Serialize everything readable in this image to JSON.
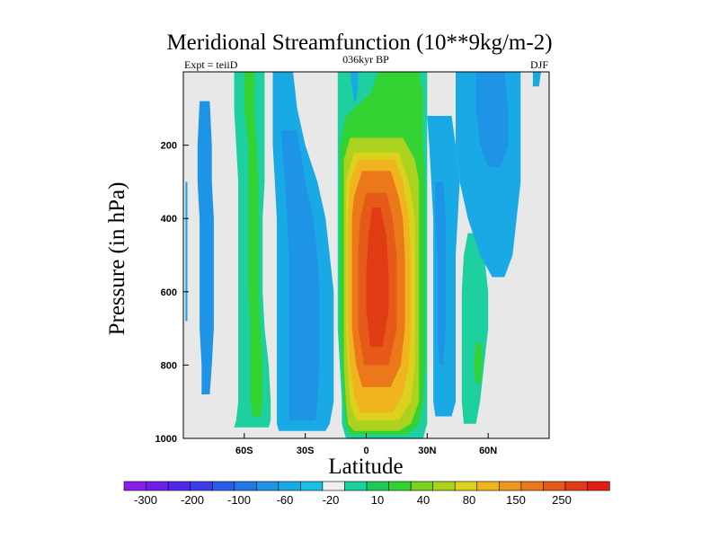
{
  "chart_data": {
    "type": "contour",
    "title": "Meridional Streamfunction (10**9kg/m-2)",
    "subtitle_left": "Expt = teiiD",
    "subtitle_center": "036kyr BP",
    "subtitle_right": "DJF",
    "xlabel": "Latitude",
    "ylabel": "Pressure (in hPa)",
    "xlim": [
      -90,
      90
    ],
    "ylim": [
      1000,
      0
    ],
    "x_ticks": [
      {
        "value": -60,
        "label": "60S"
      },
      {
        "value": -30,
        "label": "30S"
      },
      {
        "value": 0,
        "label": "0"
      },
      {
        "value": 30,
        "label": "30N"
      },
      {
        "value": 60,
        "label": "60N"
      }
    ],
    "y_ticks": [
      {
        "value": 200,
        "label": "200"
      },
      {
        "value": 400,
        "label": "400"
      },
      {
        "value": 600,
        "label": "600"
      },
      {
        "value": 800,
        "label": "800"
      },
      {
        "value": 1000,
        "label": "1000"
      }
    ],
    "colorbar": {
      "colors": [
        "#8a1ee6",
        "#6e1ee6",
        "#5028e6",
        "#3c3ce6",
        "#2a5ce8",
        "#1e78e6",
        "#1e94e6",
        "#19aae6",
        "#19bfe6",
        "#eeeeee",
        "#1ecfa0",
        "#1ec85a",
        "#32d232",
        "#78d21e",
        "#aad21e",
        "#dcd21e",
        "#f0b41e",
        "#f0961e",
        "#eb7819",
        "#e65a19",
        "#e03c14",
        "#e01e14"
      ],
      "tick_labels": [
        "-300",
        "-200",
        "-100",
        "-60",
        "-20",
        "10",
        "40",
        "80",
        "150",
        "250"
      ]
    },
    "contour_fill": [
      {
        "name": "sh-polar-minus20",
        "color": "#19aae6",
        "x": [
          -88,
          -72,
          -72,
          -88
        ],
        "y": [
          [
            90,
            150,
            220,
            300,
            400,
            500,
            600,
            700,
            800,
            900,
            940,
            960
          ],
          [
            90,
            150,
            220,
            300,
            400,
            500,
            600,
            700,
            800,
            900,
            940,
            960
          ]
        ],
        "shape": "band",
        "x0": [
          -88,
          -86,
          -86,
          -86,
          -86,
          -86,
          -86,
          -86,
          -86,
          -85,
          -84,
          -83
        ],
        "x1": [
          -72,
          -72,
          -73,
          -72,
          -71,
          -70,
          -70,
          -70,
          -70,
          -71,
          -72,
          -74
        ]
      },
      {
        "name": "sh-polar-minus60",
        "color": "#1e94e6",
        "shape": "band",
        "y": [
          80,
          200,
          300,
          400,
          500,
          600,
          700,
          800,
          880
        ],
        "x0": [
          -82,
          -83,
          -83,
          -82,
          -82,
          -82,
          -82,
          -81,
          -81
        ],
        "x1": [
          -77,
          -76,
          -76,
          -75,
          -75,
          -75,
          -75,
          -76,
          -77
        ]
      },
      {
        "name": "sh-mid-plus20",
        "color": "#1ecfa0",
        "shape": "band",
        "y": [
          0,
          100,
          200,
          300,
          400,
          500,
          600,
          700,
          800,
          900,
          950,
          970
        ],
        "x0": [
          -65,
          -65,
          -64,
          -63,
          -63,
          -63,
          -63,
          -63,
          -63,
          -63,
          -64,
          -65
        ],
        "x1": [
          -50,
          -50,
          -50,
          -50,
          -51,
          -51,
          -51,
          -50,
          -48,
          -47,
          -47,
          -48
        ]
      },
      {
        "name": "sh-mid-plus40",
        "color": "#32d232",
        "shape": "band",
        "y": [
          0,
          100,
          200,
          300,
          400,
          500,
          600,
          700,
          800,
          900,
          940
        ],
        "x0": [
          -60,
          -60,
          -58,
          -58,
          -58,
          -58,
          -58,
          -57,
          -57,
          -57,
          -56
        ],
        "x1": [
          -55,
          -55,
          -54,
          -53,
          -53,
          -53,
          -53,
          -52,
          -51,
          -51,
          -52
        ]
      },
      {
        "name": "sh-subtrop-minus20",
        "color": "#19aae6",
        "shape": "band",
        "y": [
          0,
          100,
          200,
          300,
          400,
          500,
          600,
          700,
          800,
          900,
          960,
          980
        ],
        "x0": [
          -46,
          -46,
          -46,
          -45,
          -44,
          -44,
          -44,
          -44,
          -44,
          -44,
          -44,
          -43
        ],
        "x1": [
          -36,
          -34,
          -30,
          -24,
          -20,
          -18,
          -16,
          -16,
          -16,
          -16,
          -18,
          -20
        ]
      },
      {
        "name": "sh-subtrop-minus60",
        "color": "#1e94e6",
        "shape": "band",
        "y": [
          160,
          300,
          400,
          500,
          600,
          700,
          800,
          900,
          950
        ],
        "x0": [
          -42,
          -40,
          -39,
          -38,
          -38,
          -38,
          -38,
          -38,
          -38
        ],
        "x1": [
          -34,
          -30,
          -26,
          -24,
          -23,
          -23,
          -23,
          -24,
          -25
        ]
      },
      {
        "name": "trop-plus10",
        "color": "#1ecfa0",
        "shape": "band",
        "y": [
          0,
          60,
          120,
          200,
          300,
          400,
          500,
          600,
          700,
          800,
          900,
          960,
          1000
        ],
        "x0": [
          -14,
          -14,
          -14,
          -14,
          -14,
          -14,
          -14,
          -14,
          -14,
          -13,
          -12,
          -12,
          -10
        ],
        "x1": [
          30,
          30,
          30,
          30,
          30,
          30,
          30,
          30,
          30,
          30,
          30,
          30,
          28
        ]
      },
      {
        "name": "trop-plus40",
        "color": "#32d232",
        "shape": "band",
        "y": [
          0,
          60,
          120,
          200,
          300,
          400,
          500,
          600,
          700,
          800,
          900,
          960,
          990
        ],
        "x0": [
          6,
          2,
          -10,
          -13,
          -13,
          -13,
          -13,
          -13,
          -13,
          -12,
          -11,
          -10,
          -8
        ],
        "x1": [
          26,
          28,
          28,
          28,
          29,
          29,
          29,
          29,
          29,
          29,
          28,
          26,
          20
        ]
      },
      {
        "name": "trop-plus80",
        "color": "#aad21e",
        "shape": "band",
        "y": [
          180,
          240,
          300,
          400,
          500,
          600,
          700,
          800,
          900,
          960,
          980
        ],
        "x0": [
          -8,
          -11,
          -11,
          -11,
          -11,
          -11,
          -11,
          -11,
          -10,
          -9,
          -6
        ],
        "x1": [
          18,
          24,
          26,
          26,
          26,
          26,
          26,
          26,
          26,
          22,
          16
        ]
      },
      {
        "name": "trop-plus150",
        "color": "#dcd21e",
        "shape": "band",
        "y": [
          220,
          300,
          400,
          500,
          600,
          700,
          800,
          900,
          950
        ],
        "x0": [
          -6,
          -10,
          -10,
          -10,
          -10,
          -10,
          -9,
          -8,
          -5
        ],
        "x1": [
          16,
          21,
          24,
          24,
          24,
          24,
          24,
          22,
          16
        ]
      },
      {
        "name": "trop-plus200",
        "color": "#f0b41e",
        "shape": "band",
        "y": [
          240,
          300,
          400,
          500,
          600,
          700,
          800,
          880,
          930
        ],
        "x0": [
          -4,
          -8,
          -9,
          -9,
          -9,
          -9,
          -8,
          -6,
          -3
        ],
        "x1": [
          14,
          18,
          21,
          22,
          22,
          22,
          21,
          18,
          13
        ]
      },
      {
        "name": "trop-plus250",
        "color": "#eb7819",
        "shape": "band",
        "y": [
          270,
          340,
          400,
          500,
          600,
          700,
          800,
          860
        ],
        "x0": [
          -2,
          -6,
          -7,
          -7,
          -7,
          -7,
          -5,
          -2
        ],
        "x1": [
          12,
          16,
          18,
          19,
          19,
          19,
          17,
          12
        ]
      },
      {
        "name": "trop-plus300",
        "color": "#e65a19",
        "shape": "band",
        "y": [
          330,
          400,
          500,
          600,
          700,
          800
        ],
        "x0": [
          0,
          -3,
          -4,
          -4,
          -4,
          -1
        ],
        "x1": [
          10,
          13,
          15,
          15,
          15,
          11
        ]
      },
      {
        "name": "trop-plus350",
        "color": "#e03c14",
        "shape": "band",
        "y": [
          370,
          450,
          550,
          650,
          750
        ],
        "x0": [
          3,
          1,
          0,
          0,
          2
        ],
        "x1": [
          7,
          10,
          11,
          11,
          8
        ]
      },
      {
        "name": "nh-subtrop-minus20",
        "color": "#19aae6",
        "shape": "band",
        "y": [
          120,
          200,
          300,
          400,
          500,
          600,
          700,
          800,
          900,
          940
        ],
        "x0": [
          30,
          31,
          32,
          33,
          33,
          33,
          33,
          33,
          33,
          34
        ],
        "x1": [
          42,
          44,
          46,
          45,
          44,
          44,
          44,
          44,
          44,
          42
        ]
      },
      {
        "name": "nh-subtrop-minus60",
        "color": "#1e94e6",
        "shape": "band",
        "y": [
          300,
          400,
          500,
          600,
          700,
          800
        ],
        "x0": [
          34,
          34,
          35,
          35,
          35,
          36
        ],
        "x1": [
          38,
          39,
          39,
          39,
          39,
          38
        ]
      },
      {
        "name": "nh-mid-plus10",
        "color": "#1ecfa0",
        "shape": "band",
        "y": [
          440,
          500,
          600,
          700,
          800,
          900,
          960
        ],
        "x0": [
          50,
          48,
          47,
          47,
          47,
          47,
          48
        ],
        "x1": [
          56,
          58,
          60,
          60,
          58,
          56,
          54
        ]
      },
      {
        "name": "nh-mid-plus40",
        "color": "#32d232",
        "shape": "band",
        "y": [
          740,
          800,
          850
        ],
        "x0": [
          54,
          53,
          54
        ],
        "x1": [
          57,
          57,
          56
        ]
      },
      {
        "name": "nh-upper-minus20",
        "color": "#19aae6",
        "shape": "band",
        "y": [
          0,
          100,
          200,
          300,
          400,
          500,
          560
        ],
        "x0": [
          44,
          44,
          44,
          46,
          50,
          56,
          62
        ],
        "x1": [
          76,
          76,
          76,
          76,
          74,
          72,
          68
        ]
      },
      {
        "name": "nh-upper-minus60",
        "color": "#1e94e6",
        "shape": "band",
        "y": [
          0,
          100,
          200,
          260
        ],
        "x0": [
          54,
          54,
          56,
          60
        ],
        "x1": [
          68,
          70,
          70,
          66
        ]
      },
      {
        "name": "sh-top-minus20",
        "color": "#19aae6",
        "shape": "band",
        "y": [
          0,
          40,
          80
        ],
        "x0": [
          -8,
          -7,
          -6
        ],
        "x1": [
          -4,
          -4,
          -5
        ]
      },
      {
        "name": "nh-top-minus20",
        "color": "#19aae6",
        "shape": "band",
        "y": [
          0,
          40
        ],
        "x0": [
          82,
          82
        ],
        "x1": [
          86,
          85
        ]
      },
      {
        "name": "sh-edge-minus20",
        "color": "#19aae6",
        "shape": "band",
        "y": [
          300,
          450,
          600,
          680
        ],
        "x0": [
          -89,
          -89,
          -89,
          -89
        ],
        "x1": [
          -88,
          -88,
          -88,
          -88
        ]
      }
    ]
  }
}
